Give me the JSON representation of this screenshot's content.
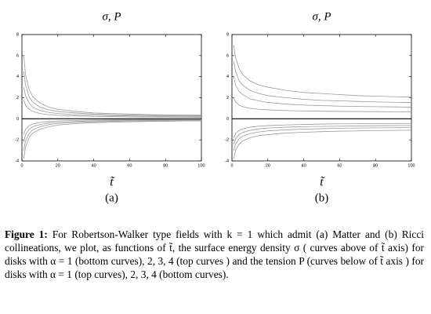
{
  "chart_data": [
    {
      "type": "line",
      "title": "σ, P",
      "xlabel": "t̃",
      "panel_label": "(a)",
      "xlim": [
        0,
        100
      ],
      "ylim": [
        -4,
        8
      ],
      "xticks": [
        0,
        20,
        40,
        60,
        80,
        100
      ],
      "yticks": [
        -4,
        -2,
        0,
        2,
        4,
        6,
        8
      ],
      "x": [
        1,
        2,
        4,
        6,
        10,
        15,
        20,
        30,
        40,
        50,
        60,
        70,
        80,
        90,
        100
      ],
      "series": [
        {
          "color": "#9a9a9a",
          "values": [
            6,
            4.2,
            2.8,
            2.1,
            1.5,
            1.1,
            0.9,
            0.7,
            0.55,
            0.5,
            0.45,
            0.4,
            0.38,
            0.36,
            0.35
          ]
        },
        {
          "color": "#9a9a9a",
          "values": [
            4.5,
            3.2,
            2.1,
            1.6,
            1.1,
            0.85,
            0.7,
            0.55,
            0.45,
            0.4,
            0.36,
            0.33,
            0.31,
            0.3,
            0.29
          ]
        },
        {
          "color": "#9a9a9a",
          "values": [
            3,
            2.2,
            1.5,
            1.1,
            0.8,
            0.6,
            0.5,
            0.4,
            0.33,
            0.3,
            0.27,
            0.25,
            0.24,
            0.23,
            0.22
          ]
        },
        {
          "color": "#9a9a9a",
          "values": [
            1.8,
            1.3,
            0.9,
            0.7,
            0.5,
            0.4,
            0.33,
            0.27,
            0.23,
            0.2,
            0.18,
            0.17,
            0.16,
            0.15,
            0.14
          ]
        },
        {
          "color": "#9a9a9a",
          "values": [
            -1.5,
            -1,
            -0.65,
            -0.5,
            -0.35,
            -0.25,
            -0.2,
            -0.15,
            -0.12,
            -0.1,
            -0.09,
            -0.08,
            -0.07,
            -0.07,
            -0.06
          ]
        },
        {
          "color": "#9a9a9a",
          "values": [
            -2.2,
            -1.5,
            -1,
            -0.75,
            -0.55,
            -0.4,
            -0.33,
            -0.25,
            -0.2,
            -0.17,
            -0.15,
            -0.13,
            -0.12,
            -0.11,
            -0.1
          ]
        },
        {
          "color": "#9a9a9a",
          "values": [
            -3,
            -2.1,
            -1.4,
            -1.05,
            -0.75,
            -0.55,
            -0.45,
            -0.35,
            -0.28,
            -0.24,
            -0.21,
            -0.19,
            -0.17,
            -0.16,
            -0.15
          ]
        },
        {
          "color": "#9a9a9a",
          "values": [
            -3.8,
            -2.7,
            -1.8,
            -1.35,
            -1,
            -0.75,
            -0.6,
            -0.45,
            -0.37,
            -0.32,
            -0.28,
            -0.25,
            -0.23,
            -0.21,
            -0.2
          ]
        }
      ]
    },
    {
      "type": "line",
      "title": "σ, P",
      "xlabel": "t̃",
      "panel_label": "(b)",
      "xlim": [
        0,
        100
      ],
      "ylim": [
        -4,
        8
      ],
      "xticks": [
        0,
        20,
        40,
        60,
        80,
        100
      ],
      "yticks": [
        -4,
        -2,
        0,
        2,
        4,
        6,
        8
      ],
      "x": [
        1,
        2,
        4,
        6,
        10,
        15,
        20,
        30,
        40,
        50,
        60,
        70,
        80,
        90,
        100
      ],
      "series": [
        {
          "color": "#9a9a9a",
          "values": [
            7,
            5.8,
            4.8,
            4.2,
            3.6,
            3.2,
            3,
            2.7,
            2.5,
            2.4,
            2.3,
            2.2,
            2.15,
            2.1,
            2.05
          ]
        },
        {
          "color": "#9a9a9a",
          "values": [
            5.5,
            4.5,
            3.6,
            3.2,
            2.7,
            2.4,
            2.2,
            2,
            1.85,
            1.75,
            1.7,
            1.65,
            1.6,
            1.57,
            1.55
          ]
        },
        {
          "color": "#9a9a9a",
          "values": [
            4,
            3.2,
            2.6,
            2.3,
            1.9,
            1.7,
            1.55,
            1.4,
            1.3,
            1.25,
            1.2,
            1.17,
            1.15,
            1.13,
            1.1
          ]
        },
        {
          "color": "#9a9a9a",
          "values": [
            2,
            1.6,
            1.3,
            1.15,
            1,
            0.9,
            0.85,
            0.78,
            0.74,
            0.72,
            0.7,
            0.69,
            0.68,
            0.67,
            0.66
          ]
        },
        {
          "color": "#9a9a9a",
          "values": [
            -1.8,
            -1.4,
            -1.1,
            -0.95,
            -0.8,
            -0.7,
            -0.65,
            -0.58,
            -0.54,
            -0.5,
            -0.48,
            -0.47,
            -0.46,
            -0.45,
            -0.44
          ]
        },
        {
          "color": "#9a9a9a",
          "values": [
            -2.4,
            -1.9,
            -1.5,
            -1.3,
            -1.1,
            -0.95,
            -0.88,
            -0.8,
            -0.75,
            -0.72,
            -0.7,
            -0.68,
            -0.66,
            -0.65,
            -0.64
          ]
        },
        {
          "color": "#9a9a9a",
          "values": [
            -3,
            -2.4,
            -1.9,
            -1.65,
            -1.4,
            -1.25,
            -1.15,
            -1.05,
            -0.98,
            -0.94,
            -0.9,
            -0.88,
            -0.86,
            -0.85,
            -0.84
          ]
        },
        {
          "color": "#9a9a9a",
          "values": [
            -3.8,
            -3,
            -2.4,
            -2.1,
            -1.8,
            -1.6,
            -1.5,
            -1.35,
            -1.28,
            -1.22,
            -1.18,
            -1.15,
            -1.12,
            -1.1,
            -1.08
          ]
        }
      ]
    }
  ],
  "caption": {
    "label": "Figure 1:",
    "text": "For Robertson-Walker type fields with k = 1 which admit (a) Matter and (b) Ricci collineations, we plot, as functions of t̃, the surface energy density σ ( curves above of t̃ axis) for disks with α = 1 (bottom curves), 2, 3, 4 (top curves ) and the tension P (curves below of t̃ axis ) for disks with α = 1 (top curves), 2, 3, 4 (bottom curves)."
  }
}
